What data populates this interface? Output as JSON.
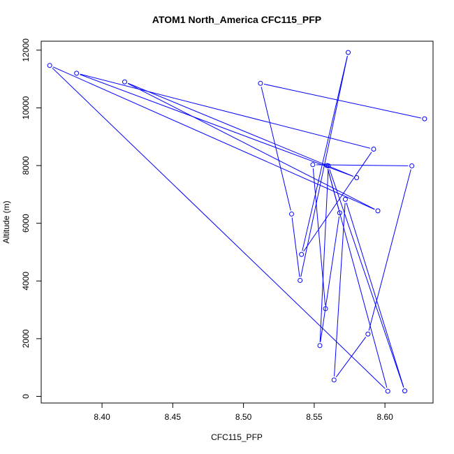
{
  "chart_data": {
    "type": "line",
    "title": "ATOM1 North_America CFC115_PFP",
    "xlabel": "CFC115_PFP",
    "ylabel": "Altitude (m)",
    "xlim": [
      8.357,
      8.634
    ],
    "ylim": [
      -230,
      12310
    ],
    "xticks": [
      8.4,
      8.45,
      8.5,
      8.55,
      8.6
    ],
    "xtick_labels": [
      "8.40",
      "8.45",
      "8.50",
      "8.55",
      "8.60"
    ],
    "yticks": [
      0,
      2000,
      4000,
      6000,
      8000,
      10000,
      12000
    ],
    "ytick_labels": [
      "0",
      "2000",
      "4000",
      "6000",
      "8000",
      "10000",
      "12000"
    ],
    "grid": false,
    "legend": "none",
    "series": [
      {
        "color": "#0000ff",
        "marker": "open-circle",
        "x": [
          8.628,
          8.512,
          8.534,
          8.54,
          8.574,
          8.541,
          8.592,
          8.382,
          8.58,
          8.416,
          8.595,
          8.363,
          8.602,
          8.559,
          8.568,
          8.554,
          8.56,
          8.614,
          8.572,
          8.564,
          8.588,
          8.619,
          8.549,
          8.558
        ],
        "y": [
          9620,
          10850,
          6320,
          4020,
          11920,
          4920,
          8570,
          11200,
          7580,
          10900,
          6430,
          11470,
          180,
          8000,
          6360,
          1760,
          7990,
          190,
          6830,
          570,
          2160,
          7990,
          8030,
          3040
        ]
      }
    ]
  }
}
